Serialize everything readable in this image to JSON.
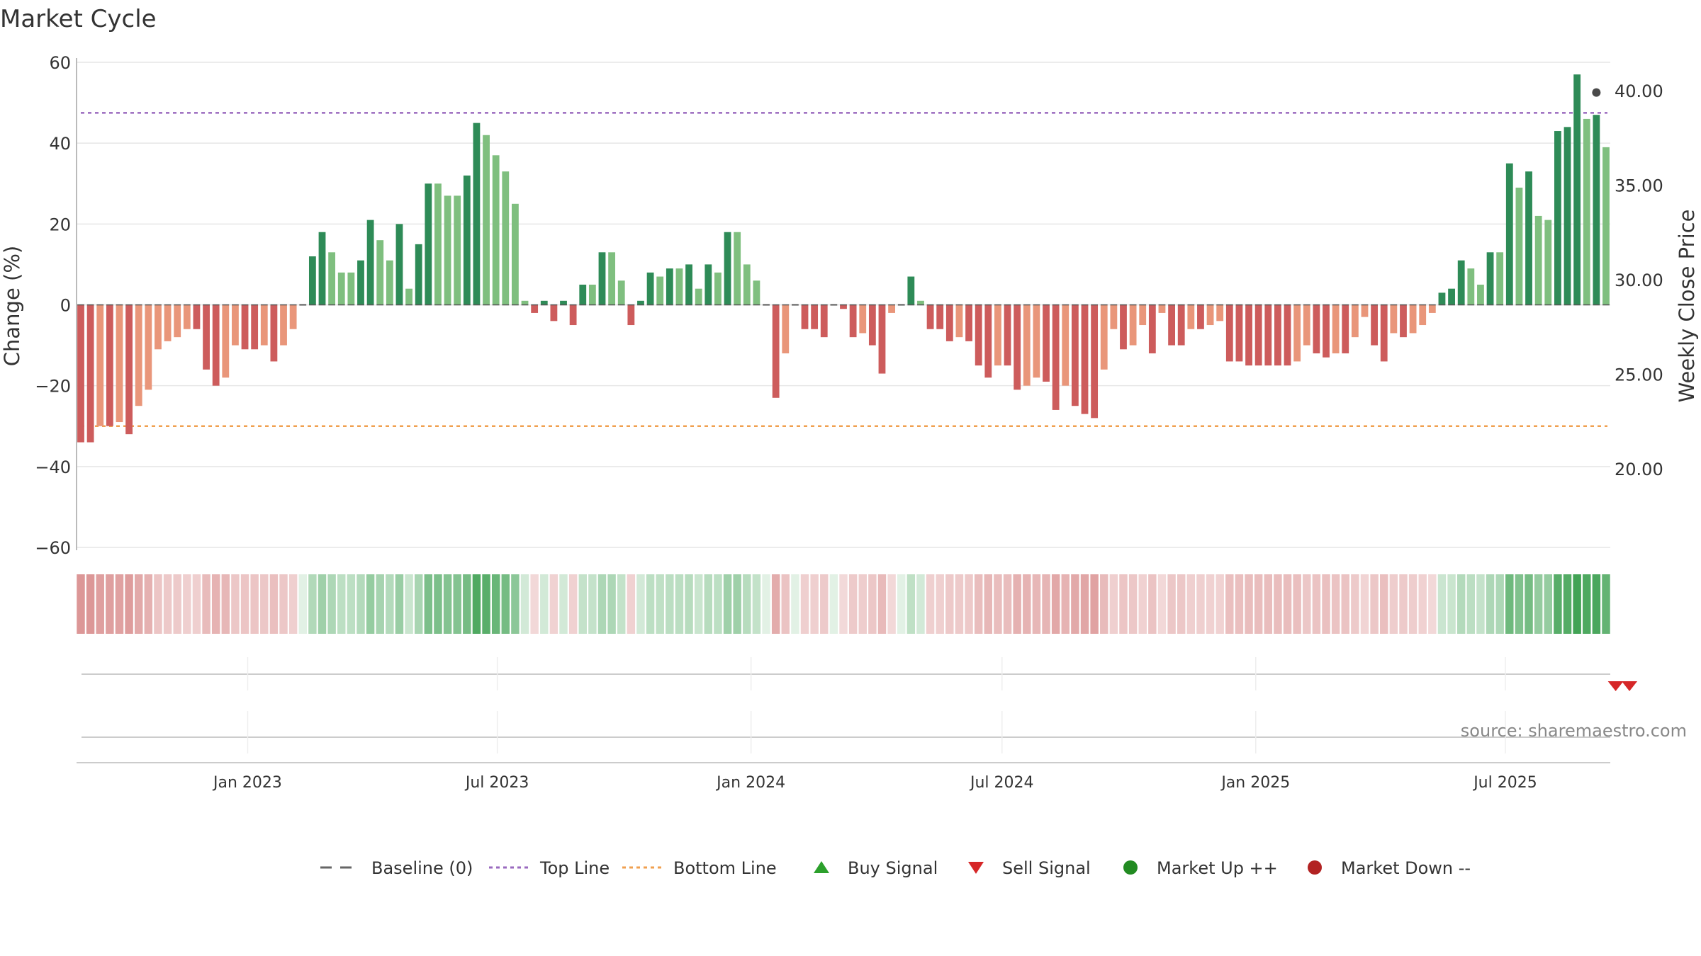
{
  "chart_data": {
    "type": "bar",
    "title": "Market Cycle",
    "ylabel": "Change (%)",
    "ylabel_right": "Weekly Close Price",
    "ylim": [
      -60,
      60
    ],
    "yticks": [
      60,
      40,
      20,
      0,
      -20,
      -40,
      -60
    ],
    "ylim_right": [
      15,
      42
    ],
    "yticks_right": [
      "40.00",
      "35.00",
      "30.00",
      "25.00",
      "20.00"
    ],
    "x_start": "2022-09-02",
    "x_step_days": 7,
    "x_tick_labels": [
      {
        "date": "2023-01-01",
        "label": "Jan 2023"
      },
      {
        "date": "2023-07-01",
        "label": "Jul 2023"
      },
      {
        "date": "2024-01-01",
        "label": "Jan 2024"
      },
      {
        "date": "2024-07-01",
        "label": "Jul 2024"
      },
      {
        "date": "2025-01-01",
        "label": "Jan 2025"
      },
      {
        "date": "2025-07-01",
        "label": "Jul 2025"
      }
    ],
    "values": [
      -34,
      -34,
      -30,
      -30,
      -29,
      -32,
      -25,
      -21,
      -11,
      -9,
      -8,
      -6,
      -6,
      -16,
      -20,
      -18,
      -10,
      -11,
      -11,
      -10,
      -14,
      -10,
      -6,
      0,
      12,
      18,
      13,
      8,
      8,
      11,
      21,
      16,
      11,
      20,
      4,
      15,
      30,
      30,
      27,
      27,
      32,
      45,
      42,
      37,
      33,
      25,
      1,
      -2,
      1,
      -4,
      1,
      -5,
      5,
      5,
      13,
      13,
      6,
      -5,
      1,
      8,
      7,
      9,
      9,
      10,
      4,
      10,
      8,
      18,
      18,
      10,
      6,
      0,
      -23,
      -12,
      0,
      -6,
      -6,
      -8,
      0,
      -1,
      -8,
      -7,
      -10,
      -17,
      -2,
      0,
      7,
      1,
      -6,
      -6,
      -9,
      -8,
      -9,
      -15,
      -18,
      -15,
      -15,
      -21,
      -20,
      -18,
      -19,
      -26,
      -20,
      -25,
      -27,
      -28,
      -16,
      -6,
      -11,
      -10,
      -5,
      -12,
      -2,
      -10,
      -10,
      -6,
      -6,
      -5,
      -4,
      -14,
      -14,
      -15,
      -15,
      -15,
      -15,
      -15,
      -14,
      -10,
      -12,
      -13,
      -12,
      -12,
      -8,
      -3,
      -10,
      -14,
      -7,
      -8,
      -7,
      -5,
      -2,
      3,
      4,
      11,
      9,
      5,
      13,
      13,
      35,
      29,
      33,
      22,
      21,
      43,
      44,
      57,
      46,
      47,
      39
    ],
    "close_price": [
      39.9
    ],
    "reference_lines": [
      {
        "name": "Baseline (0)",
        "value": 0
      },
      {
        "name": "Top Line",
        "value": 47.5
      },
      {
        "name": "Bottom Line",
        "value": -30
      }
    ],
    "sell_signal_dates": [
      "2025-09-19",
      "2025-09-29"
    ],
    "source_text": "source: sharemaestro.com",
    "legend": [
      {
        "label": "Baseline (0)",
        "marker": "dash-line",
        "color": "#666666"
      },
      {
        "label": "Top Line",
        "marker": "dot-line",
        "color": "#9a6abf"
      },
      {
        "label": "Bottom Line",
        "marker": "dot-line",
        "color": "#f0a050"
      },
      {
        "label": "Buy Signal",
        "marker": "triangle-up",
        "color": "#2ca02c"
      },
      {
        "label": "Sell Signal",
        "marker": "triangle-down",
        "color": "#d62728"
      },
      {
        "label": "Market Up ++",
        "marker": "circle",
        "color": "#228b22"
      },
      {
        "label": "Market Down --",
        "marker": "circle",
        "color": "#b22222"
      }
    ],
    "legend_position": "bottom",
    "grid": true
  },
  "colors": {
    "up_strong": "#2e8b57",
    "up_light": "#7fbf7f",
    "down_strong": "#cd5c5c",
    "down_light": "#e9967a",
    "grid": "#e6e6e6",
    "axis": "#bbbbbb"
  }
}
